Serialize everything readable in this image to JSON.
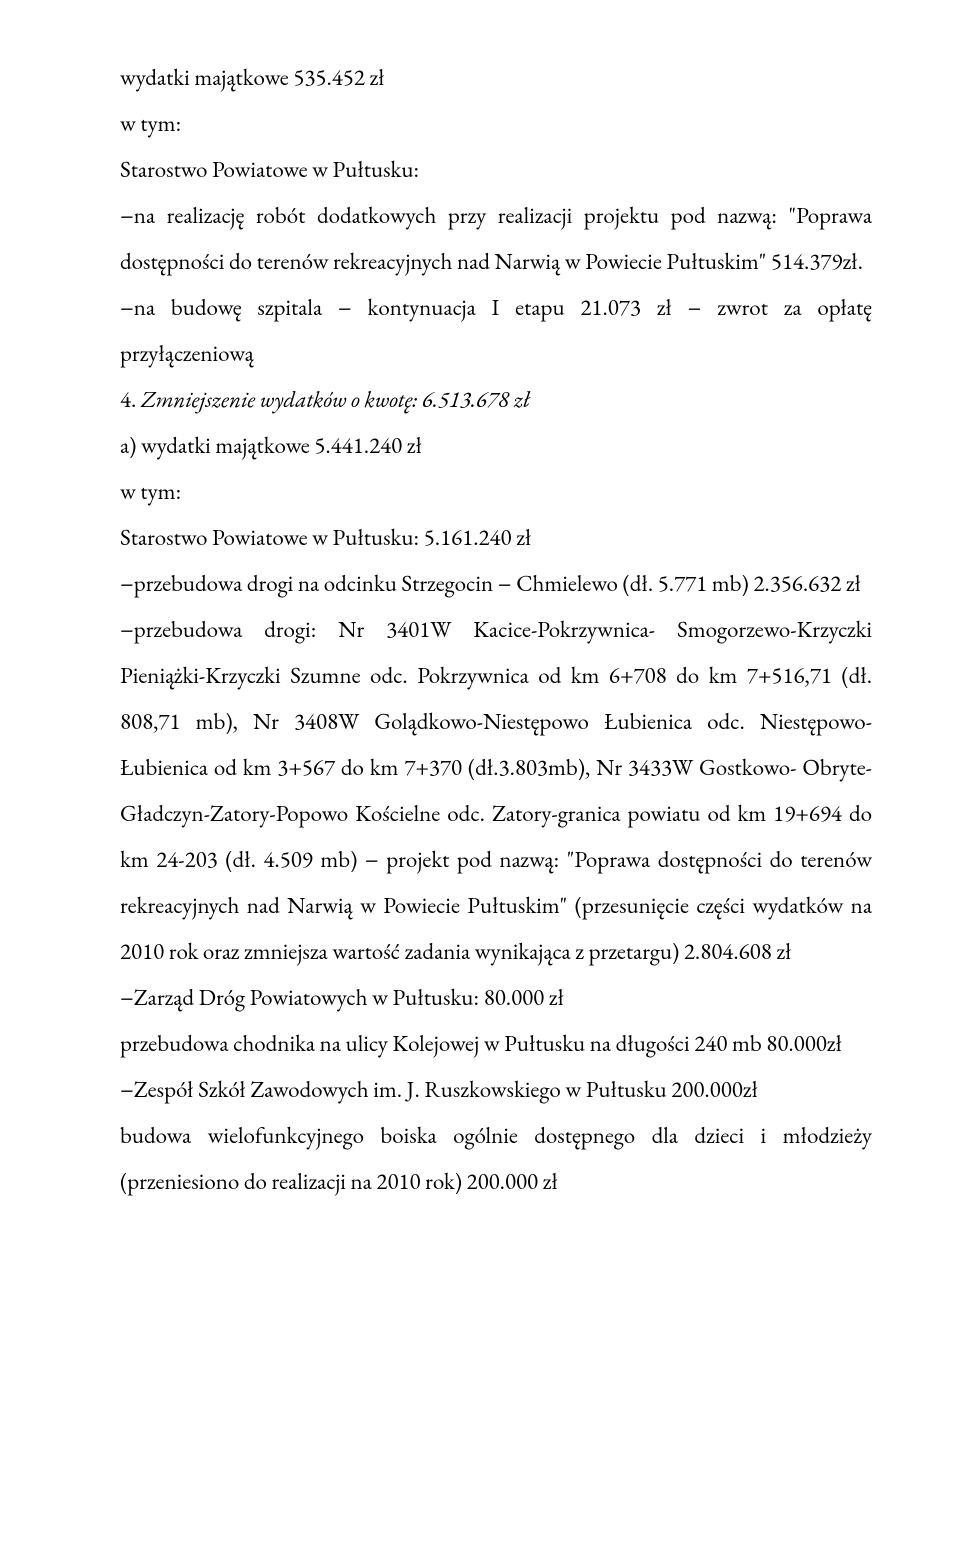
{
  "p1": "wydatki majątkowe                 535.452 zł",
  "p2": " w tym:",
  "p3": "Starostwo Powiatowe w Pułtusku:",
  "p4": "−na realizację robót dodatkowych przy realizacji  projektu pod nazwą: \"Poprawa dostępności do terenów  rekreacyjnych nad Narwią w Powiecie Pułtuskim\" 514.379zł.",
  "p5": "−na budowę szpitala − kontynuacja I etapu   21.073 zł − zwrot za opłatę przyłączeniową",
  "p6_prefix": "4. ",
  "p6_italic": "Zmniejszenie wydatków o kwotę: 6.513.678 zł",
  "p7": "a) wydatki majątkowe           5.441.240 zł",
  "p8": " w tym:",
  "p9": "Starostwo Powiatowe w Pułtusku:  5.161.240  zł",
  "p10": "−przebudowa drogi na odcinku Strzegocin − Chmielewo (dł. 5.771 mb) 2.356.632 zł",
  "p11": "−przebudowa drogi: Nr 3401W Kacice-Pokrzywnica- Smogorzewo-Krzyczki Pieniążki-Krzyczki Szumne odc. Pokrzywnica od km 6+708 do km 7+516,71 (dł. 808,71 mb), Nr 3408W Golądkowo-Niestępowo Łubienica odc. Niestępowo-Łubienica od km 3+567  do km 7+370 (dł.3.803mb), Nr 3433W Gostkowo- Obryte-Gładczyn-Zatory-Popowo Kościelne odc. Zatory-granica powiatu od km 19+694  do km 24-203 (dł. 4.509 mb) − projekt pod nazwą: \"Poprawa dostępności do terenów rekreacyjnych nad Narwią w Powiecie Pułtuskim\" (przesunięcie części wydatków na 2010 rok oraz zmniejsza wartość zadania wynikająca z przetargu)   2.804.608 zł",
  "p12": "−Zarząd Dróg Powiatowych w Pułtusku:  80.000 zł",
  "p13": "przebudowa chodnika na ulicy Kolejowej w Pułtusku na długości 240 mb 80.000zł",
  "p14": "−Zespół Szkół Zawodowych im. J. Ruszkowskiego w Pułtusku 200.000zł",
  "p15": "budowa wielofunkcyjnego boiska ogólnie dostępnego dla dzieci i młodzieży (przeniesiono do realizacji na 2010 rok)  200.000 zł"
}
